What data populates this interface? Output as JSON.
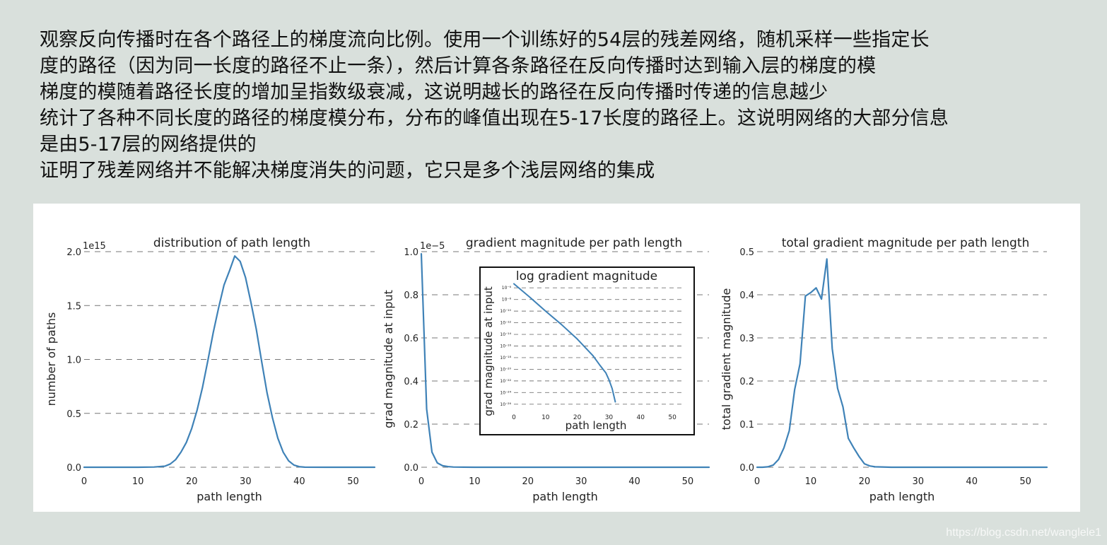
{
  "notes": [
    "观察反向传播时在各个路径上的梯度流向比例。使用一个训练好的54层的残差网络，随机采样一些指定长",
    "度的路径（因为同一长度的路径不止一条），然后计算各条路径在反向传播时达到输入层的梯度的模",
    "梯度的模随着路径长度的增加呈指数级衰减，这说明越长的路径在反向传播时传递的信息越少",
    "统计了各种不同长度的路径的梯度模分布，分布的峰值出现在5-17长度的路径上。这说明网络的大部分信息",
    "是由5-17层的网络提供的",
    "证明了残差网络并不能解决梯度消失的问题，它只是多个浅层网络的集成"
  ],
  "watermark": "https://blog.csdn.net/wanglele1",
  "colors": {
    "background": "#d9e0dc",
    "panel": "#ffffff",
    "line": "#3f82b7",
    "grid": "#777777",
    "text": "#222222"
  },
  "chart_data": [
    {
      "type": "line",
      "title": "distribution of path length",
      "xlabel": "path length",
      "ylabel": "number of paths",
      "multiplier_label": "1e15",
      "xlim": [
        0,
        54
      ],
      "ylim": [
        0,
        2.0
      ],
      "xticks": [
        0,
        10,
        20,
        30,
        40,
        50
      ],
      "yticks": [
        0.0,
        0.5,
        1.0,
        1.5,
        2.0
      ],
      "ytick_labels": [
        "0.0",
        "0.5",
        "1.0",
        "1.5",
        "2.0"
      ],
      "grid": "horizontal dashed",
      "x": [
        0,
        5,
        10,
        13,
        15,
        16,
        17,
        18,
        19,
        20,
        21,
        22,
        23,
        24,
        25,
        26,
        27,
        28,
        29,
        30,
        31,
        32,
        33,
        34,
        35,
        36,
        37,
        38,
        39,
        40,
        41,
        45,
        54
      ],
      "values": [
        0,
        0,
        0,
        0.002,
        0.01,
        0.03,
        0.07,
        0.14,
        0.23,
        0.36,
        0.53,
        0.74,
        0.99,
        1.25,
        1.48,
        1.69,
        1.82,
        1.96,
        1.91,
        1.76,
        1.53,
        1.28,
        0.98,
        0.69,
        0.46,
        0.27,
        0.14,
        0.06,
        0.02,
        0.005,
        0.001,
        0,
        0
      ]
    },
    {
      "type": "line",
      "title": "gradient magnitude per path length",
      "xlabel": "path length",
      "ylabel": "grad magnitude at input",
      "multiplier_label": "1e−5",
      "xlim": [
        0,
        54
      ],
      "ylim": [
        0,
        1.0
      ],
      "xticks": [
        0,
        10,
        20,
        30,
        40,
        50
      ],
      "yticks": [
        0.0,
        0.2,
        0.4,
        0.6,
        0.8,
        1.0
      ],
      "ytick_labels": [
        "0.0",
        "0.2",
        "0.4",
        "0.6",
        "0.8",
        "1.0"
      ],
      "grid": "horizontal dashed",
      "x": [
        0,
        1,
        2,
        3,
        4,
        5,
        6,
        8,
        10,
        20,
        30,
        40,
        54
      ],
      "values": [
        0.99,
        0.27,
        0.07,
        0.02,
        0.007,
        0.003,
        0.001,
        0.0004,
        0.0001,
        0,
        0,
        0,
        0
      ],
      "inset": {
        "type": "line",
        "title": "log gradient magnitude",
        "xlabel": "path length",
        "ylabel": "grad magnitude at input",
        "log_y": true,
        "xlim": [
          0,
          54
        ],
        "ylim_exp": [
          -27,
          -5
        ],
        "xticks": [
          0,
          10,
          20,
          30,
          40,
          50
        ],
        "yticks_exp": [
          -6,
          -8,
          -10,
          -12,
          -14,
          -16,
          -18,
          -20,
          -22,
          -24,
          -26
        ],
        "ytick_labels": [
          "10⁻⁶",
          "10⁻⁸",
          "10⁻¹⁰",
          "10⁻¹²",
          "10⁻¹⁴",
          "10⁻¹⁶",
          "10⁻¹⁸",
          "10⁻²⁰",
          "10⁻²²",
          "10⁻²⁴",
          "10⁻²⁶"
        ],
        "x": [
          0,
          5,
          10,
          15,
          20,
          25,
          27,
          29,
          30,
          31,
          32
        ],
        "log10_values": [
          -5.3,
          -7.6,
          -10.0,
          -12.3,
          -14.8,
          -17.7,
          -19.2,
          -20.6,
          -21.8,
          -23.3,
          -25.6
        ]
      }
    },
    {
      "type": "line",
      "title": "total gradient magnitude per path length",
      "xlabel": "path length",
      "ylabel": "total gradient magnitude",
      "xlim": [
        0,
        54
      ],
      "ylim": [
        0,
        0.5
      ],
      "xticks": [
        0,
        10,
        20,
        30,
        40,
        50
      ],
      "yticks": [
        0.0,
        0.1,
        0.2,
        0.3,
        0.4,
        0.5
      ],
      "ytick_labels": [
        "0.0",
        "0.1",
        "0.2",
        "0.3",
        "0.4",
        "0.5"
      ],
      "grid": "horizontal dashed",
      "x": [
        0,
        1,
        2,
        3,
        4,
        5,
        6,
        7,
        8,
        9,
        10,
        11,
        12,
        13,
        14,
        15,
        16,
        17,
        18,
        19,
        20,
        21,
        22,
        25,
        30,
        40,
        54
      ],
      "values": [
        0,
        0,
        0.001,
        0.005,
        0.018,
        0.045,
        0.085,
        0.18,
        0.24,
        0.397,
        0.405,
        0.416,
        0.39,
        0.483,
        0.275,
        0.183,
        0.14,
        0.067,
        0.045,
        0.025,
        0.008,
        0.003,
        0.001,
        0,
        0,
        0,
        0
      ]
    }
  ]
}
